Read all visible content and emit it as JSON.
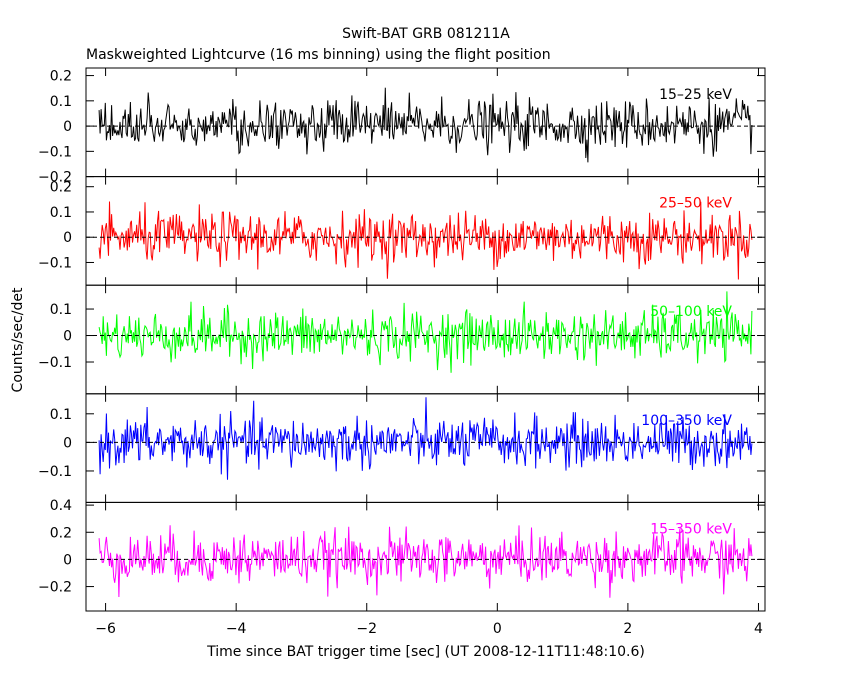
{
  "chart_data": {
    "type": "line",
    "title": "Swift-BAT GRB 081211A",
    "subtitle": "Maskweighted Lightcurve (16 ms binning) using the flight position",
    "xlabel": "Time since BAT trigger time [sec] (UT 2008-12-11T11:48:10.6)",
    "ylabel": "Counts/sec/det",
    "xlim": [
      -6.3,
      4.1
    ],
    "x_ticks": [
      -6,
      -4,
      -2,
      0,
      2,
      4
    ],
    "x_tick_labels": [
      "−6",
      "−4",
      "−2",
      "0",
      "2",
      "4"
    ],
    "x_range_data": [
      -6.1,
      3.9
    ],
    "bin_width_sec": 0.016,
    "grid": false,
    "panels": [
      {
        "name": "15–25 keV",
        "color": "#000000",
        "ylim": [
          -0.2,
          0.23
        ],
        "y_ticks": [
          -0.2,
          -0.1,
          0,
          0.1,
          0.2
        ],
        "y_tick_labels": [
          "−0.2",
          "−0.1",
          "0",
          "0.1",
          "0.2"
        ],
        "noise_amplitude": 0.09,
        "mean": 0.005
      },
      {
        "name": "25–50 keV",
        "color": "#ff0000",
        "ylim": [
          -0.19,
          0.24
        ],
        "y_ticks": [
          -0.1,
          0,
          0.1,
          0.2
        ],
        "y_tick_labels": [
          "−0.1",
          "0",
          "0.1",
          "0.2"
        ],
        "noise_amplitude": 0.09,
        "mean": 0.0
      },
      {
        "name": "50–100 keV",
        "color": "#00ff00",
        "ylim": [
          -0.22,
          0.19
        ],
        "y_ticks": [
          -0.1,
          0,
          0.1
        ],
        "y_tick_labels": [
          "−0.1",
          "0",
          "0.1"
        ],
        "noise_amplitude": 0.085,
        "mean": 0.0
      },
      {
        "name": "100–350 keV",
        "color": "#0000ff",
        "ylim": [
          -0.21,
          0.17
        ],
        "y_ticks": [
          -0.1,
          0,
          0.1
        ],
        "y_tick_labels": [
          "−0.1",
          "0",
          "0.1"
        ],
        "noise_amplitude": 0.08,
        "mean": 0.0
      },
      {
        "name": "15–350 keV",
        "color": "#ff00ff",
        "ylim": [
          -0.38,
          0.42
        ],
        "y_ticks": [
          -0.2,
          0,
          0.2,
          0.4
        ],
        "y_tick_labels": [
          "−0.2",
          "0",
          "0.2",
          "0.4"
        ],
        "noise_amplitude": 0.17,
        "mean": 0.01
      }
    ]
  }
}
